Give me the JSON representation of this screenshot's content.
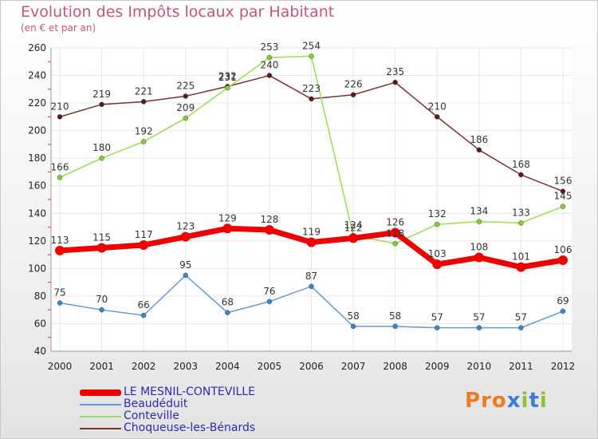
{
  "header": {
    "title": "Evolution des Impôts locaux par Habitant",
    "subtitle": "(en € et par an)"
  },
  "logo": {
    "text": "Proxiti",
    "colors": [
      "#f07b1f",
      "#3a7cd8",
      "#8fc135"
    ]
  },
  "chart_data": {
    "type": "line",
    "title": "Evolution des Impôts locaux par Habitant",
    "subtitle": "(en € et par an)",
    "xlabel": "",
    "ylabel": "",
    "categories": [
      "2000",
      "2001",
      "2002",
      "2003",
      "2004",
      "2005",
      "2006",
      "2007",
      "2008",
      "2009",
      "2010",
      "2011",
      "2012"
    ],
    "y_ticks": [
      "40",
      "60",
      "80",
      "100",
      "120",
      "140",
      "160",
      "180",
      "200",
      "220",
      "240",
      "260"
    ],
    "ylim": [
      40,
      260
    ],
    "grid": true,
    "legend_position": "bottom-left",
    "series": [
      {
        "name": "LE MESNIL-CONTEVILLE",
        "color": "#ee0000",
        "values": [
          113,
          115,
          117,
          123,
          129,
          128,
          119,
          122,
          126,
          103,
          108,
          101,
          106
        ],
        "labels": [
          "113",
          "115",
          "117",
          "123",
          "129",
          "128",
          "119",
          "122",
          "126",
          "103",
          "108",
          "101",
          "106"
        ]
      },
      {
        "name": "Beaudéduit",
        "color": "#6699cc",
        "values": [
          75,
          70,
          66,
          95,
          68,
          76,
          87,
          58,
          58,
          57,
          57,
          57,
          69
        ],
        "labels": [
          "75",
          "70",
          "66",
          "95",
          "68",
          "76",
          "87",
          "58",
          "58",
          "57",
          "57",
          "57",
          "69"
        ]
      },
      {
        "name": "Conteville",
        "color": "#99dd55",
        "values": [
          166,
          180,
          192,
          209,
          231,
          253,
          254,
          124,
          118,
          132,
          134,
          133,
          145
        ],
        "labels": [
          "166",
          "180",
          "192",
          "209",
          "231",
          "253",
          "254",
          "124",
          "118",
          "132",
          "134",
          "133",
          "145"
        ]
      },
      {
        "name": "Choqueuse-les-Bénards",
        "color": "#773333",
        "values": [
          210,
          219,
          221,
          225,
          232,
          240,
          223,
          226,
          235,
          210,
          186,
          168,
          156
        ],
        "labels": [
          "210",
          "219",
          "221",
          "225",
          "232",
          "240",
          "223",
          "226",
          "235",
          "210",
          "186",
          "168",
          "156"
        ]
      }
    ]
  }
}
